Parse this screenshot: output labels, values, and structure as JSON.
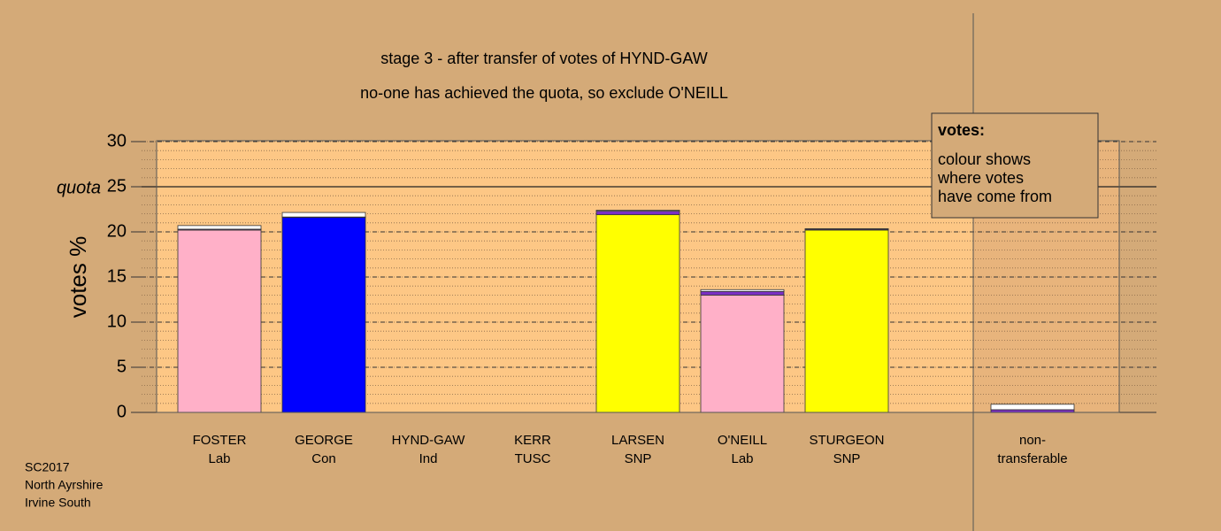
{
  "chart_data": {
    "type": "stacked-bar",
    "title": "stage 3 - after transfer of votes of HYND-GAW",
    "subtitle": "no-one has achieved the quota, so exclude O'NEILL",
    "ylabel": "votes %",
    "categories": [
      [
        "FOSTER",
        "Lab"
      ],
      [
        "GEORGE",
        "Con"
      ],
      [
        "HYND-GAW",
        "Ind"
      ],
      [
        "KERR",
        "TUSC"
      ],
      [
        "LARSEN",
        "SNP"
      ],
      [
        "O'NEILL",
        "Lab"
      ],
      [
        "STURGEON",
        "SNP"
      ],
      [
        "non-",
        "transferable"
      ]
    ],
    "series": [
      {
        "colors": [
          "#ffb0c8",
          "#0000ff",
          "#ffffff",
          "#ff0000",
          "#ffff00",
          "#ffb0c8",
          "#ffff00",
          "#ffffff"
        ],
        "values": [
          20.2,
          21.6,
          0,
          0,
          21.9,
          13.0,
          20.2,
          0
        ]
      },
      {
        "color": "#7a2fc4",
        "values": [
          0.1,
          0.05,
          0,
          0,
          0.4,
          0.4,
          0.1,
          0.3
        ]
      },
      {
        "color": "#ffffff",
        "values": [
          0.4,
          0.5,
          0,
          0,
          0.1,
          0.2,
          0.05,
          0.6
        ]
      }
    ],
    "ylim": [
      0,
      30
    ],
    "yticks": [
      0,
      5,
      10,
      15,
      20,
      {
        "value": 25,
        "label": "quota"
      },
      25,
      30
    ],
    "quota": 25,
    "minor_grid_step": 1,
    "legend": {
      "title": "votes:",
      "lines": [
        "colour shows",
        "where votes",
        "have come from"
      ],
      "position": "top-right"
    },
    "footer": [
      "SC2017",
      "North Ayrshire",
      "Irvine South"
    ]
  }
}
